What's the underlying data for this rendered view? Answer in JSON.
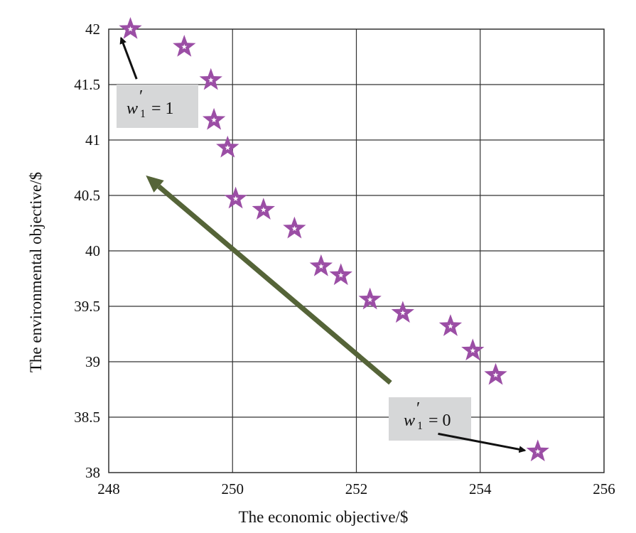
{
  "chart_data": {
    "type": "scatter",
    "title": "",
    "xlabel": "The economic objective/$",
    "ylabel": "The environmental objective/$",
    "xlim": [
      248,
      256
    ],
    "ylim": [
      38,
      42
    ],
    "xticks": [
      248,
      250,
      252,
      254,
      256
    ],
    "yticks": [
      38,
      38.5,
      39,
      39.5,
      40,
      40.5,
      41,
      41.5,
      42
    ],
    "xtick_labels": [
      "248",
      "250",
      "252",
      "254",
      "256"
    ],
    "ytick_labels": [
      "38",
      "38.5",
      "39",
      "39.5",
      "40",
      "40.5",
      "41",
      "41.5",
      "42"
    ],
    "grid": true,
    "marker": "star",
    "marker_color": "#9b4ea5",
    "series": [
      {
        "points": [
          {
            "x": 248.35,
            "y": 42.0
          },
          {
            "x": 249.22,
            "y": 41.84
          },
          {
            "x": 249.65,
            "y": 41.54
          },
          {
            "x": 249.7,
            "y": 41.18
          },
          {
            "x": 249.92,
            "y": 40.93
          },
          {
            "x": 250.05,
            "y": 40.47
          },
          {
            "x": 250.5,
            "y": 40.37
          },
          {
            "x": 251.0,
            "y": 40.2
          },
          {
            "x": 251.43,
            "y": 39.86
          },
          {
            "x": 251.75,
            "y": 39.78
          },
          {
            "x": 252.22,
            "y": 39.56
          },
          {
            "x": 252.75,
            "y": 39.44
          },
          {
            "x": 253.52,
            "y": 39.32
          },
          {
            "x": 253.88,
            "y": 39.1
          },
          {
            "x": 254.25,
            "y": 38.88
          },
          {
            "x": 254.93,
            "y": 38.19
          }
        ]
      }
    ],
    "annotations": [
      {
        "label": "w",
        "sub": "1",
        "rest": "= 1",
        "box_color": "#d6d7d8",
        "arrow_color": "#111111",
        "arrow_from": [
          248.45,
          41.55
        ],
        "arrow_to": [
          248.2,
          41.92
        ]
      },
      {
        "label": "w",
        "sub": "1",
        "rest": "= 0",
        "box_color": "#d6d7d8",
        "arrow_color": "#111111",
        "arrow_from": [
          253.32,
          38.35
        ],
        "arrow_to": [
          254.72,
          38.2
        ]
      }
    ],
    "trend_arrow": {
      "color": "#556438",
      "from": [
        252.55,
        38.81
      ],
      "to": [
        248.6,
        40.68
      ]
    }
  }
}
